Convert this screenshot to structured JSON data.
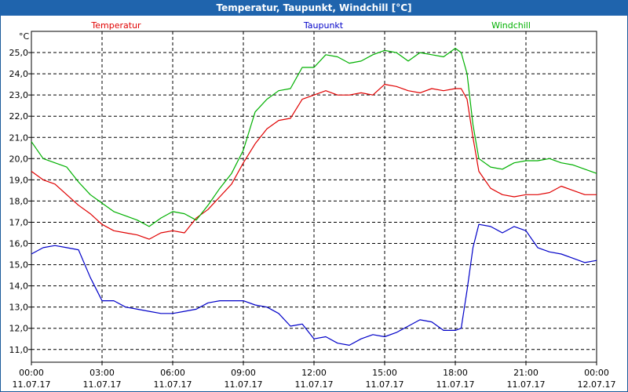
{
  "header": {
    "title": "Temperatur, Taupunkt, Windchill [°C]"
  },
  "chart_data": {
    "type": "line",
    "title": "Temperatur, Taupunkt, Windchill [°C]",
    "ylabel": "°C",
    "ylim": [
      10.4,
      26.0
    ],
    "xlim": [
      "2017-07-11 00:00",
      "2017-07-12 00:00"
    ],
    "grid": true,
    "legend": "top",
    "y_ticks": [
      "11,0",
      "12,0",
      "13,0",
      "14,0",
      "15,0",
      "16,0",
      "17,0",
      "18,0",
      "19,0",
      "20,0",
      "21,0",
      "22,0",
      "23,0",
      "24,0",
      "25,0"
    ],
    "y_tick_values": [
      11,
      12,
      13,
      14,
      15,
      16,
      17,
      18,
      19,
      20,
      21,
      22,
      23,
      24,
      25
    ],
    "x_ticks": [
      {
        "time": "00:00",
        "date": "11.07.17",
        "hour": 0
      },
      {
        "time": "03:00",
        "date": "11.07.17",
        "hour": 3
      },
      {
        "time": "06:00",
        "date": "11.07.17",
        "hour": 6
      },
      {
        "time": "09:00",
        "date": "11.07.17",
        "hour": 9
      },
      {
        "time": "12:00",
        "date": "11.07.17",
        "hour": 12
      },
      {
        "time": "15:00",
        "date": "11.07.17",
        "hour": 15
      },
      {
        "time": "18:00",
        "date": "11.07.17",
        "hour": 18
      },
      {
        "time": "21:00",
        "date": "11.07.17",
        "hour": 21
      },
      {
        "time": "00:00",
        "date": "12.07.17",
        "hour": 24
      }
    ],
    "x": [
      0,
      0.5,
      1,
      1.5,
      2,
      2.5,
      3,
      3.5,
      4,
      4.5,
      5,
      5.5,
      6,
      6.5,
      7,
      7.5,
      8,
      8.5,
      9,
      9.5,
      10,
      10.5,
      11,
      11.5,
      12,
      12.5,
      13,
      13.5,
      14,
      14.5,
      15,
      15.5,
      16,
      16.5,
      17,
      17.5,
      18,
      18.25,
      18.5,
      18.75,
      19,
      19.5,
      20,
      20.5,
      21,
      21.5,
      22,
      22.5,
      23,
      23.5,
      24
    ],
    "series": [
      {
        "name": "Temperatur",
        "color": "#e00000",
        "values": [
          19.4,
          19.0,
          18.8,
          18.3,
          17.8,
          17.4,
          16.9,
          16.6,
          16.5,
          16.4,
          16.2,
          16.5,
          16.6,
          16.5,
          17.2,
          17.6,
          18.2,
          18.8,
          19.8,
          20.7,
          21.4,
          21.8,
          21.9,
          22.8,
          23.0,
          23.2,
          23.0,
          23.0,
          23.1,
          23.0,
          23.5,
          23.4,
          23.2,
          23.1,
          23.3,
          23.2,
          23.3,
          23.3,
          22.8,
          21.0,
          19.4,
          18.6,
          18.3,
          18.2,
          18.3,
          18.3,
          18.4,
          18.7,
          18.5,
          18.3,
          18.3
        ]
      },
      {
        "name": "Taupunkt",
        "color": "#0000c8",
        "values": [
          15.5,
          15.8,
          15.9,
          15.8,
          15.7,
          14.4,
          13.3,
          13.3,
          13.0,
          12.9,
          12.8,
          12.7,
          12.7,
          12.8,
          12.9,
          13.2,
          13.3,
          13.3,
          13.3,
          13.1,
          13.0,
          12.7,
          12.1,
          12.2,
          11.5,
          11.6,
          11.3,
          11.2,
          11.5,
          11.7,
          11.6,
          11.8,
          12.1,
          12.4,
          12.3,
          11.9,
          11.9,
          12.0,
          13.8,
          15.8,
          16.9,
          16.8,
          16.5,
          16.8,
          16.6,
          15.8,
          15.6,
          15.5,
          15.3,
          15.1,
          15.2
        ]
      },
      {
        "name": "Windchill",
        "color": "#00b000",
        "values": [
          20.8,
          20.0,
          19.8,
          19.6,
          18.9,
          18.3,
          17.9,
          17.5,
          17.3,
          17.1,
          16.8,
          17.2,
          17.5,
          17.4,
          17.1,
          17.8,
          18.6,
          19.3,
          20.4,
          22.2,
          22.8,
          23.2,
          23.3,
          24.3,
          24.3,
          24.9,
          24.8,
          24.5,
          24.6,
          24.9,
          25.1,
          25.0,
          24.6,
          25.0,
          24.9,
          24.8,
          25.2,
          25.0,
          24.0,
          21.6,
          20.0,
          19.6,
          19.5,
          19.8,
          19.9,
          19.9,
          20.0,
          19.8,
          19.7,
          19.5,
          19.3
        ]
      }
    ]
  }
}
